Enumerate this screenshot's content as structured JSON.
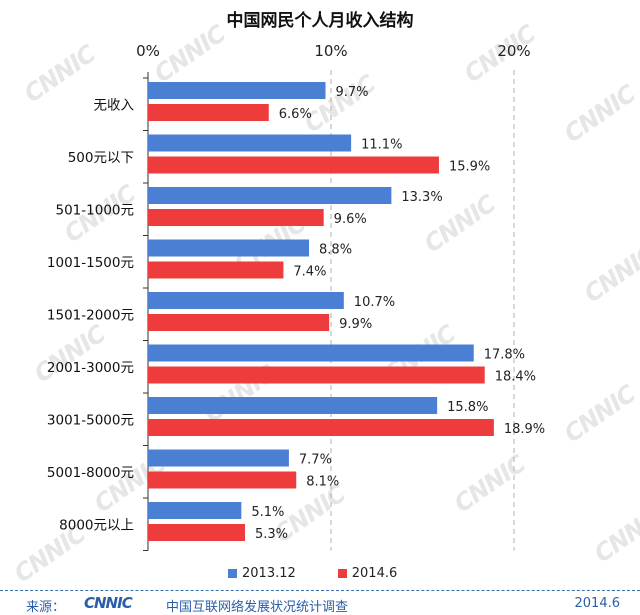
{
  "chart_data": {
    "type": "bar",
    "orientation": "horizontal",
    "title": "中国网民个人月收入结构",
    "categories": [
      "无收入",
      "500元以下",
      "501-1000元",
      "1001-1500元",
      "1501-2000元",
      "2001-3000元",
      "3001-5000元",
      "5001-8000元",
      "8000元以上"
    ],
    "series": [
      {
        "name": "2013.12",
        "color": "#4a7fd4",
        "values": [
          9.7,
          11.1,
          13.3,
          8.8,
          10.7,
          17.8,
          15.8,
          7.7,
          5.1
        ]
      },
      {
        "name": "2014.6",
        "color": "#ee3b3b",
        "values": [
          6.6,
          15.9,
          9.6,
          7.4,
          9.9,
          18.4,
          18.9,
          8.1,
          5.3
        ]
      }
    ],
    "xlim": [
      0,
      20
    ],
    "xticks": [
      "0%",
      "10%",
      "20%"
    ],
    "value_suffix": "%",
    "grid": true,
    "legend_position": "bottom"
  },
  "footer": {
    "source_label": "来源：",
    "logo_text": "CNNIC",
    "org": "中国互联网络发展状况统计调查",
    "date": "2014.6"
  },
  "watermark_text": "CNNIC"
}
